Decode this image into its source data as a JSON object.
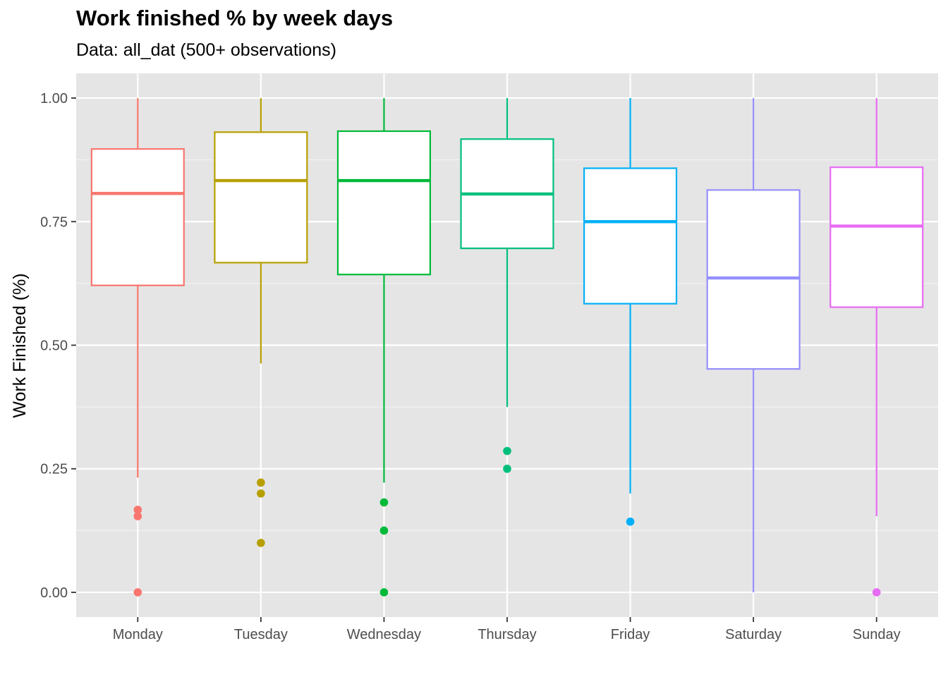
{
  "chart_data": {
    "type": "boxplot",
    "title": "Work finished % by week days",
    "subtitle": "Data: all_dat (500+ observations)",
    "xlabel": "",
    "ylabel": "Work Finished (%)",
    "ylim": [
      -0.05,
      1.05
    ],
    "yticks": [
      "0.00",
      "0.25",
      "0.50",
      "0.75",
      "1.00"
    ],
    "ytick_values": [
      0,
      0.25,
      0.5,
      0.75,
      1.0
    ],
    "grid": true,
    "legend": "none",
    "categories": [
      "Monday",
      "Tuesday",
      "Wednesday",
      "Thursday",
      "Friday",
      "Saturday",
      "Sunday"
    ],
    "boxes": [
      {
        "category": "Monday",
        "color": "#F8766D",
        "whisker_low": 0.232,
        "q1": 0.621,
        "median": 0.807,
        "q3": 0.897,
        "whisker_high": 1.0,
        "outliers": [
          0.167,
          0.154,
          0.0
        ]
      },
      {
        "category": "Tuesday",
        "color": "#B79F00",
        "whisker_low": 0.463,
        "q1": 0.667,
        "median": 0.833,
        "q3": 0.931,
        "whisker_high": 1.0,
        "outliers": [
          0.222,
          0.2,
          0.1
        ]
      },
      {
        "category": "Wednesday",
        "color": "#00BA38",
        "whisker_low": 0.222,
        "q1": 0.643,
        "median": 0.833,
        "q3": 0.933,
        "whisker_high": 1.0,
        "outliers": [
          0.182,
          0.125,
          0.0
        ]
      },
      {
        "category": "Thursday",
        "color": "#00BF7D",
        "whisker_low": 0.375,
        "q1": 0.696,
        "median": 0.806,
        "q3": 0.917,
        "whisker_high": 1.0,
        "outliers": [
          0.286,
          0.25
        ]
      },
      {
        "category": "Friday",
        "color": "#00B0F6",
        "whisker_low": 0.2,
        "q1": 0.584,
        "median": 0.75,
        "q3": 0.858,
        "whisker_high": 1.0,
        "outliers": [
          0.143
        ]
      },
      {
        "category": "Saturday",
        "color": "#9590FF",
        "whisker_low": 0.0,
        "q1": 0.452,
        "median": 0.636,
        "q3": 0.814,
        "whisker_high": 1.0,
        "outliers": []
      },
      {
        "category": "Sunday",
        "color": "#E76BF3",
        "whisker_low": 0.154,
        "q1": 0.577,
        "median": 0.741,
        "q3": 0.86,
        "whisker_high": 1.0,
        "outliers": [
          0.0
        ]
      }
    ]
  }
}
